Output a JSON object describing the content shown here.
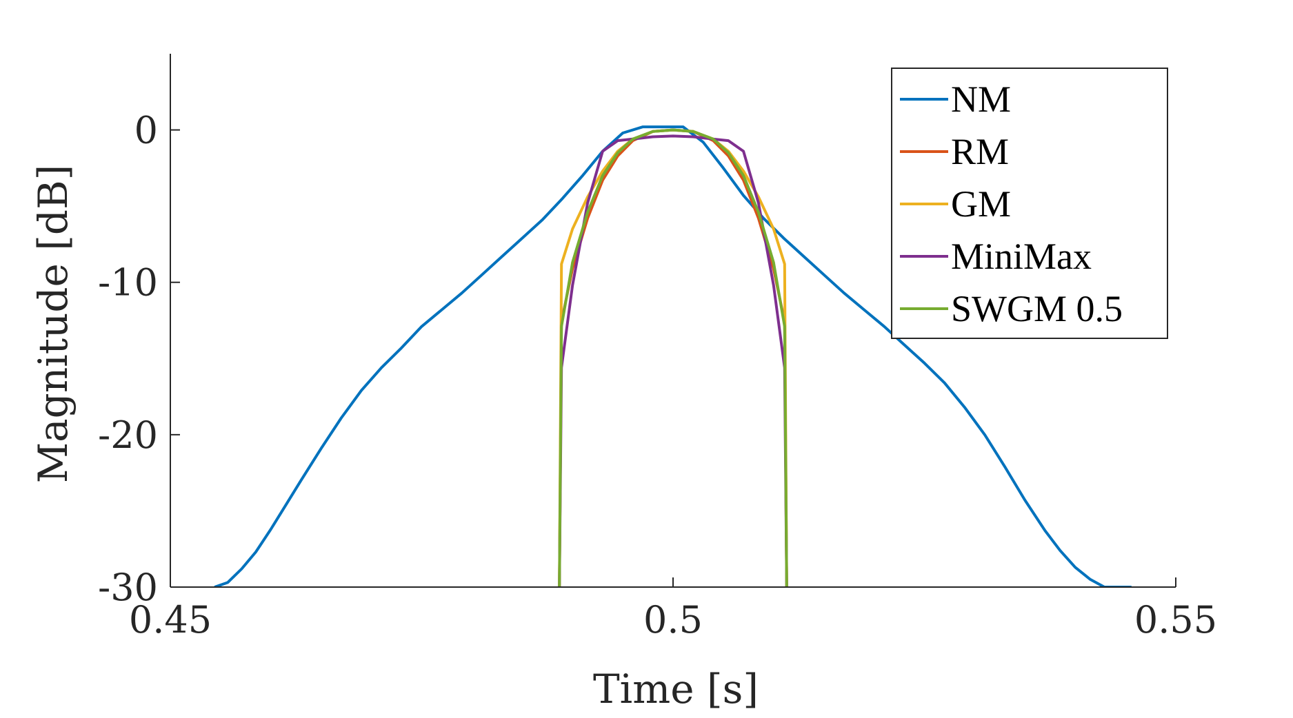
{
  "chart_data": {
    "type": "line",
    "xlabel": "Time [s]",
    "ylabel": "Magnitude [dB]",
    "xlim": [
      0.45,
      0.55
    ],
    "ylim": [
      -30,
      5
    ],
    "xticks": [
      0.45,
      0.5,
      0.55
    ],
    "xtick_labels": [
      "0.45",
      "0.5",
      "0.55"
    ],
    "yticks": [
      -30,
      -20,
      -10,
      0
    ],
    "ytick_labels": [
      "-30",
      "-20",
      "-10",
      "0"
    ],
    "grid": false,
    "legend_position": "top-right",
    "series": [
      {
        "name": "NM",
        "color": "#0072BD",
        "x": [
          0.4544,
          0.4557,
          0.4571,
          0.4585,
          0.46,
          0.4615,
          0.463,
          0.465,
          0.467,
          0.469,
          0.471,
          0.473,
          0.475,
          0.477,
          0.479,
          0.481,
          0.483,
          0.485,
          0.487,
          0.489,
          0.491,
          0.493,
          0.495,
          0.497,
          0.499,
          0.5,
          0.501,
          0.503,
          0.505,
          0.507,
          0.509,
          0.511,
          0.513,
          0.515,
          0.517,
          0.519,
          0.521,
          0.523,
          0.525,
          0.527,
          0.529,
          0.531,
          0.533,
          0.535,
          0.537,
          0.5385,
          0.54,
          0.5415,
          0.5429,
          0.5443,
          0.5456
        ],
        "y": [
          -30,
          -29.7,
          -28.8,
          -27.7,
          -26.2,
          -24.6,
          -23.0,
          -20.9,
          -18.9,
          -17.1,
          -15.6,
          -14.3,
          -12.9,
          -11.8,
          -10.7,
          -9.5,
          -8.3,
          -7.1,
          -5.9,
          -4.5,
          -3.0,
          -1.4,
          -0.2,
          0.2,
          0.2,
          0.2,
          0.2,
          -0.8,
          -2.5,
          -4.3,
          -5.8,
          -7.1,
          -8.3,
          -9.5,
          -10.7,
          -11.8,
          -12.9,
          -14.1,
          -15.3,
          -16.6,
          -18.2,
          -20.0,
          -22.1,
          -24.3,
          -26.3,
          -27.6,
          -28.7,
          -29.5,
          -30,
          -30,
          -30
        ]
      },
      {
        "name": "RM",
        "color": "#D95319",
        "x": [
          0.4887,
          0.4889,
          0.49,
          0.4915,
          0.493,
          0.4945,
          0.496,
          0.498,
          0.5,
          0.502,
          0.504,
          0.5055,
          0.507,
          0.5085,
          0.51,
          0.5111,
          0.5113
        ],
        "y": [
          -30,
          -12.6,
          -9.1,
          -5.8,
          -3.3,
          -1.7,
          -0.7,
          -0.1,
          0.0,
          -0.1,
          -0.7,
          -1.7,
          -3.3,
          -5.8,
          -9.1,
          -12.6,
          -30
        ]
      },
      {
        "name": "GM",
        "color": "#EDB120",
        "x": [
          0.4887,
          0.4889,
          0.49,
          0.4915,
          0.493,
          0.4945,
          0.496,
          0.498,
          0.5,
          0.502,
          0.504,
          0.5055,
          0.507,
          0.5085,
          0.51,
          0.5111,
          0.5113
        ],
        "y": [
          -30,
          -8.8,
          -6.5,
          -4.4,
          -2.7,
          -1.4,
          -0.6,
          -0.1,
          0.0,
          -0.1,
          -0.6,
          -1.4,
          -2.7,
          -4.4,
          -6.5,
          -8.8,
          -30
        ]
      },
      {
        "name": "MiniMax",
        "color": "#7E2F8E",
        "x": [
          0.4887,
          0.4889,
          0.49,
          0.4915,
          0.493,
          0.4945,
          0.496,
          0.498,
          0.5,
          0.502,
          0.504,
          0.5055,
          0.507,
          0.5085,
          0.51,
          0.5111,
          0.5113
        ],
        "y": [
          -30,
          -15.6,
          -10.2,
          -4.8,
          -1.4,
          -0.7,
          -0.6,
          -0.45,
          -0.4,
          -0.45,
          -0.6,
          -0.7,
          -1.4,
          -4.8,
          -10.2,
          -15.6,
          -30
        ]
      },
      {
        "name": "SWGM 0.5",
        "color": "#77AC30",
        "x": [
          0.4887,
          0.4889,
          0.49,
          0.4915,
          0.493,
          0.4945,
          0.496,
          0.498,
          0.5,
          0.502,
          0.504,
          0.5055,
          0.507,
          0.5085,
          0.51,
          0.5111,
          0.5113
        ],
        "y": [
          -30,
          -12.9,
          -8.7,
          -5.4,
          -3.0,
          -1.5,
          -0.6,
          -0.1,
          0.0,
          -0.1,
          -0.6,
          -1.5,
          -3.0,
          -5.4,
          -8.7,
          -12.9,
          -30
        ]
      }
    ]
  }
}
